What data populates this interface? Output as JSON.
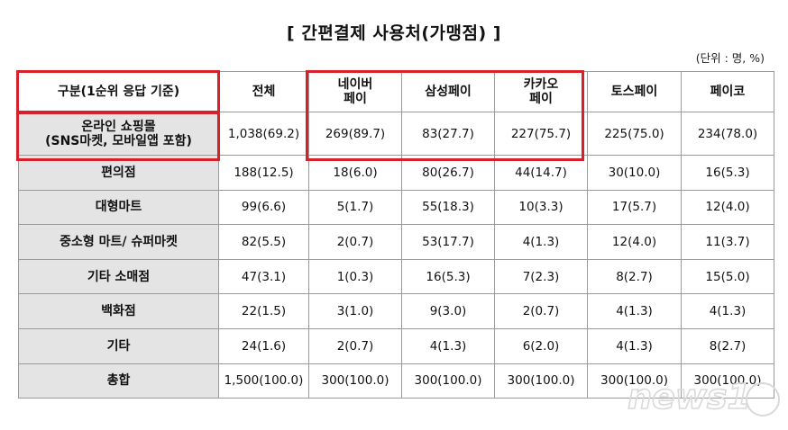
{
  "title": "[ 간편결제 사용처(가맹점) ]",
  "unit": "(단위 : 명, %)",
  "headers": [
    "구분(1순위 응답 기준)",
    "전체",
    "네이버\n페이",
    "삼성페이",
    "카카오\n페이",
    "토스페이",
    "페이코"
  ],
  "rows": [
    {
      "label": "온라인 쇼핑몰\n(SNS마켓, 모바일앱 포함)",
      "values": [
        "1,038(69.2)",
        "269(89.7)",
        "83(27.7)",
        "227(75.7)",
        "225(75.0)",
        "234(78.0)"
      ]
    },
    {
      "label": "편의점",
      "values": [
        "188(12.5)",
        "18(6.0)",
        "80(26.7)",
        "44(14.7)",
        "30(10.0)",
        "16(5.3)"
      ]
    },
    {
      "label": "대형마트",
      "values": [
        "99(6.6)",
        "5(1.7)",
        "55(18.3)",
        "10(3.3)",
        "17(5.7)",
        "12(4.0)"
      ]
    },
    {
      "label": "중소형 마트/ 슈퍼마켓",
      "values": [
        "82(5.5)",
        "2(0.7)",
        "53(17.7)",
        "4(1.3)",
        "12(4.0)",
        "11(3.7)"
      ]
    },
    {
      "label": "기타 소매점",
      "values": [
        "47(3.1)",
        "1(0.3)",
        "16(5.3)",
        "7(2.3)",
        "8(2.7)",
        "15(5.0)"
      ]
    },
    {
      "label": "백화점",
      "values": [
        "22(1.5)",
        "3(1.0)",
        "9(3.0)",
        "2(0.7)",
        "4(1.3)",
        "4(1.3)"
      ]
    },
    {
      "label": "기타",
      "values": [
        "24(1.6)",
        "2(0.7)",
        "4(1.3)",
        "6(2.0)",
        "4(1.3)",
        "8(2.7)"
      ]
    },
    {
      "label": "총합",
      "values": [
        "1,500(100.0)",
        "300(100.0)",
        "300(100.0)",
        "300(100.0)",
        "300(100.0)",
        "300(100.0)"
      ]
    }
  ],
  "watermark": "news1",
  "colors": {
    "highlight": "#d6202a",
    "label_bg": "#e4e4e4",
    "border": "#9a9a9a"
  }
}
